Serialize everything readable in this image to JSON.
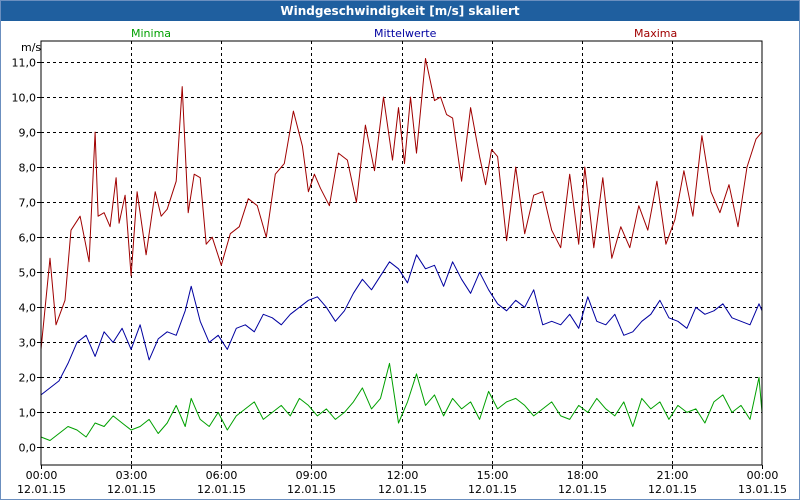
{
  "window": {
    "title": "Windgeschwindigkeit [m/s] skaliert"
  },
  "colors": {
    "title_bg": "#1f5f9f",
    "minima": "#00a000",
    "mittel": "#0000a0",
    "maxima": "#a00000",
    "grid": "#000000"
  },
  "chart_data": {
    "type": "line",
    "title": "Windgeschwindigkeit [m/s] skaliert",
    "ylabel": "m/s",
    "xlabel": "",
    "ylim": [
      -0.5,
      11.6
    ],
    "xlim": [
      0,
      24
    ],
    "yticks": [
      0,
      1,
      2,
      3,
      4,
      5,
      6,
      7,
      8,
      9,
      10,
      11
    ],
    "ytick_labels": [
      "0,0",
      "1,0",
      "2,0",
      "3,0",
      "4,0",
      "5,0",
      "6,0",
      "7,0",
      "8,0",
      "9,0",
      "10,0",
      "11,0"
    ],
    "xticks": [
      {
        "x": 0,
        "time": "00:00",
        "date": "12.01.15"
      },
      {
        "x": 3,
        "time": "03:00",
        "date": "12.01.15"
      },
      {
        "x": 6,
        "time": "06:00",
        "date": "12.01.15"
      },
      {
        "x": 9,
        "time": "09:00",
        "date": "12.01.15"
      },
      {
        "x": 12,
        "time": "12:00",
        "date": "12.01.15"
      },
      {
        "x": 15,
        "time": "15:00",
        "date": "12.01.15"
      },
      {
        "x": 18,
        "time": "18:00",
        "date": "12.01.15"
      },
      {
        "x": 21,
        "time": "21:00",
        "date": "12.01.15"
      },
      {
        "x": 24,
        "time": "00:00",
        "date": "13.01.15"
      }
    ],
    "grid": true,
    "legend": [
      "Minima",
      "Mittelwerte",
      "Maxima"
    ],
    "series": [
      {
        "name": "Maxima",
        "color": "#a00000",
        "x": [
          0,
          0.3,
          0.5,
          0.8,
          1.0,
          1.3,
          1.6,
          1.8,
          1.9,
          2.1,
          2.3,
          2.5,
          2.6,
          2.8,
          3.0,
          3.2,
          3.5,
          3.8,
          4.0,
          4.2,
          4.5,
          4.7,
          4.9,
          5.1,
          5.3,
          5.5,
          5.7,
          6.0,
          6.3,
          6.6,
          6.9,
          7.2,
          7.5,
          7.8,
          8.1,
          8.4,
          8.7,
          8.9,
          9.1,
          9.3,
          9.6,
          9.9,
          10.2,
          10.5,
          10.8,
          11.1,
          11.4,
          11.7,
          11.9,
          12.1,
          12.3,
          12.5,
          12.8,
          13.1,
          13.3,
          13.5,
          13.7,
          14.0,
          14.3,
          14.6,
          14.8,
          15.0,
          15.2,
          15.5,
          15.8,
          16.1,
          16.4,
          16.7,
          17.0,
          17.3,
          17.6,
          17.9,
          18.1,
          18.4,
          18.7,
          19.0,
          19.3,
          19.6,
          19.9,
          20.2,
          20.5,
          20.8,
          21.1,
          21.4,
          21.7,
          22.0,
          22.3,
          22.6,
          22.9,
          23.2,
          23.5,
          23.8,
          24.0
        ],
        "y": [
          2.8,
          5.4,
          3.5,
          4.2,
          6.2,
          6.6,
          5.3,
          9.0,
          6.6,
          6.7,
          6.3,
          7.7,
          6.4,
          7.2,
          4.9,
          7.3,
          5.5,
          7.3,
          6.6,
          6.8,
          7.6,
          10.3,
          6.7,
          7.8,
          7.7,
          5.8,
          6.0,
          5.2,
          6.1,
          6.3,
          7.1,
          6.9,
          6.0,
          7.8,
          8.1,
          9.6,
          8.6,
          7.3,
          7.8,
          7.4,
          6.9,
          8.4,
          8.2,
          7.0,
          9.2,
          7.9,
          10.0,
          8.2,
          9.7,
          8.1,
          10.0,
          8.4,
          11.1,
          9.9,
          10.0,
          9.5,
          9.4,
          7.6,
          9.7,
          8.3,
          7.5,
          8.5,
          8.3,
          5.9,
          8.0,
          6.1,
          7.2,
          7.3,
          6.2,
          5.7,
          7.8,
          5.8,
          8.0,
          5.7,
          7.7,
          5.4,
          6.3,
          5.7,
          6.9,
          6.2,
          7.6,
          5.8,
          6.5,
          7.9,
          6.6,
          8.9,
          7.3,
          6.7,
          7.5,
          6.3,
          8.0,
          8.8,
          9.0
        ]
      },
      {
        "name": "Mittelwerte",
        "color": "#0000a0",
        "x": [
          0,
          0.3,
          0.6,
          0.9,
          1.2,
          1.5,
          1.8,
          2.1,
          2.4,
          2.7,
          3.0,
          3.3,
          3.6,
          3.9,
          4.2,
          4.5,
          4.8,
          5.0,
          5.3,
          5.6,
          5.9,
          6.2,
          6.5,
          6.8,
          7.1,
          7.4,
          7.7,
          8.0,
          8.3,
          8.6,
          8.9,
          9.2,
          9.5,
          9.8,
          10.1,
          10.4,
          10.7,
          11.0,
          11.3,
          11.6,
          11.9,
          12.2,
          12.5,
          12.8,
          13.1,
          13.4,
          13.7,
          14.0,
          14.3,
          14.6,
          14.9,
          15.2,
          15.5,
          15.8,
          16.1,
          16.4,
          16.7,
          17.0,
          17.3,
          17.6,
          17.9,
          18.2,
          18.5,
          18.8,
          19.1,
          19.4,
          19.7,
          20.0,
          20.3,
          20.6,
          20.9,
          21.2,
          21.5,
          21.8,
          22.1,
          22.4,
          22.7,
          23.0,
          23.3,
          23.6,
          23.9,
          24.0
        ],
        "y": [
          1.5,
          1.7,
          1.9,
          2.4,
          3.0,
          3.2,
          2.6,
          3.3,
          3.0,
          3.4,
          2.8,
          3.5,
          2.5,
          3.1,
          3.3,
          3.2,
          3.9,
          4.6,
          3.6,
          3.0,
          3.2,
          2.8,
          3.4,
          3.5,
          3.3,
          3.8,
          3.7,
          3.5,
          3.8,
          4.0,
          4.2,
          4.3,
          4.0,
          3.6,
          3.9,
          4.4,
          4.8,
          4.5,
          4.9,
          5.3,
          5.1,
          4.7,
          5.5,
          5.1,
          5.2,
          4.6,
          5.3,
          4.8,
          4.4,
          5.0,
          4.5,
          4.1,
          3.9,
          4.2,
          4.0,
          4.5,
          3.5,
          3.6,
          3.5,
          3.8,
          3.4,
          4.3,
          3.6,
          3.5,
          3.8,
          3.2,
          3.3,
          3.6,
          3.8,
          4.2,
          3.7,
          3.6,
          3.4,
          4.0,
          3.8,
          3.9,
          4.1,
          3.7,
          3.6,
          3.5,
          4.1,
          3.9
        ]
      },
      {
        "name": "Minima",
        "color": "#00a000",
        "x": [
          0,
          0.3,
          0.6,
          0.9,
          1.2,
          1.5,
          1.8,
          2.1,
          2.4,
          2.7,
          3.0,
          3.3,
          3.6,
          3.9,
          4.2,
          4.5,
          4.8,
          5.0,
          5.3,
          5.6,
          5.9,
          6.2,
          6.5,
          6.8,
          7.1,
          7.4,
          7.7,
          8.0,
          8.3,
          8.6,
          8.9,
          9.2,
          9.5,
          9.8,
          10.1,
          10.4,
          10.7,
          11.0,
          11.3,
          11.6,
          11.9,
          12.2,
          12.5,
          12.8,
          13.1,
          13.4,
          13.7,
          14.0,
          14.3,
          14.6,
          14.9,
          15.2,
          15.5,
          15.8,
          16.1,
          16.4,
          16.7,
          17.0,
          17.3,
          17.6,
          17.9,
          18.2,
          18.5,
          18.8,
          19.1,
          19.4,
          19.7,
          20.0,
          20.3,
          20.6,
          20.9,
          21.2,
          21.5,
          21.8,
          22.1,
          22.4,
          22.7,
          23.0,
          23.3,
          23.6,
          23.9,
          24.0
        ],
        "y": [
          0.3,
          0.2,
          0.4,
          0.6,
          0.5,
          0.3,
          0.7,
          0.6,
          0.9,
          0.7,
          0.5,
          0.6,
          0.8,
          0.4,
          0.7,
          1.2,
          0.6,
          1.4,
          0.8,
          0.6,
          1.0,
          0.5,
          0.9,
          1.1,
          1.3,
          0.8,
          1.0,
          1.2,
          0.9,
          1.4,
          1.2,
          0.9,
          1.1,
          0.8,
          1.0,
          1.3,
          1.7,
          1.1,
          1.4,
          2.4,
          0.7,
          1.3,
          2.1,
          1.2,
          1.5,
          0.9,
          1.4,
          1.1,
          1.3,
          0.8,
          1.6,
          1.1,
          1.3,
          1.4,
          1.2,
          0.9,
          1.1,
          1.3,
          0.9,
          0.8,
          1.2,
          1.0,
          1.4,
          1.1,
          0.9,
          1.3,
          0.6,
          1.4,
          1.1,
          1.3,
          0.8,
          1.2,
          1.0,
          1.1,
          0.7,
          1.3,
          1.5,
          1.0,
          1.2,
          0.8,
          2.0,
          1.0
        ]
      }
    ]
  }
}
